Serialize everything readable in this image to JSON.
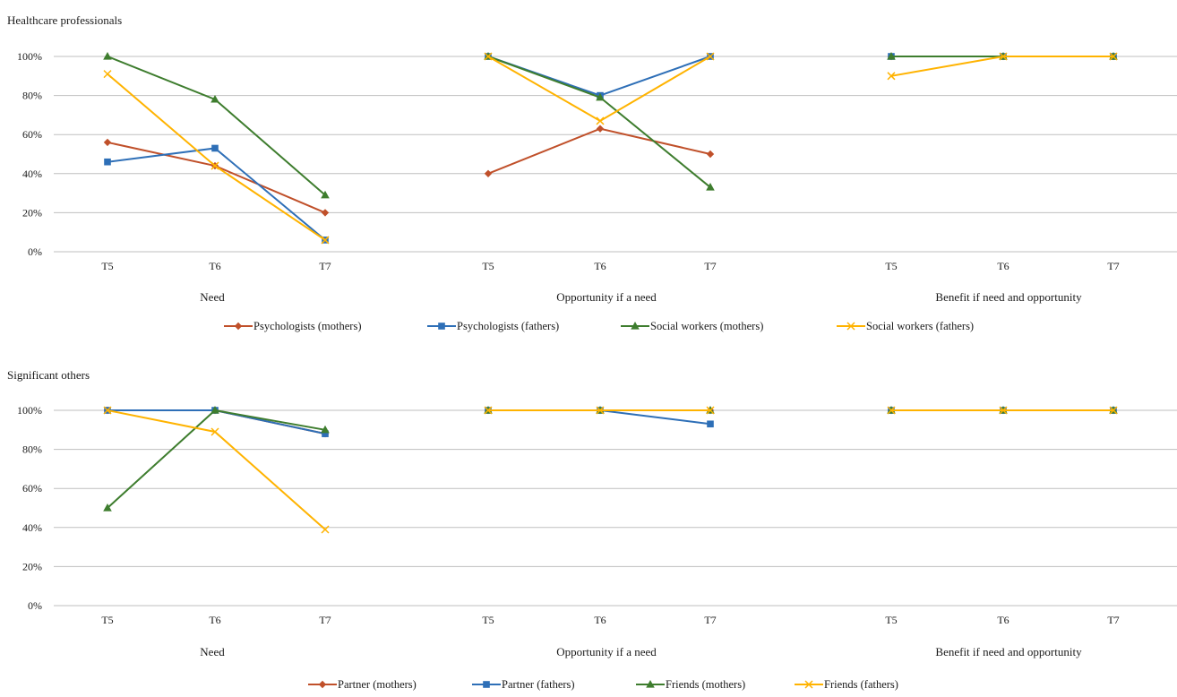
{
  "chart_data": [
    {
      "type": "line",
      "title": "Healthcare professionals",
      "ylim": [
        0,
        100
      ],
      "y_ticks": [
        "0%",
        "20%",
        "40%",
        "60%",
        "80%",
        "100%"
      ],
      "grid": true,
      "legend_position": "bottom",
      "groups": [
        {
          "label": "Need",
          "categories": [
            "T5",
            "T6",
            "T7"
          ]
        },
        {
          "label": "Opportunity if a need",
          "categories": [
            "T5",
            "T6",
            "T7"
          ]
        },
        {
          "label": "Benefit if need and opportunity",
          "categories": [
            "T5",
            "T6",
            "T7"
          ]
        }
      ],
      "series": [
        {
          "name": "Psychologists (mothers)",
          "color": "#c0502a",
          "marker": "diamond",
          "values": [
            [
              56,
              44,
              20
            ],
            [
              40,
              63,
              50
            ],
            [
              100,
              100,
              100
            ]
          ]
        },
        {
          "name": "Psychologists (fathers)",
          "color": "#2e6fb7",
          "marker": "square",
          "values": [
            [
              46,
              53,
              6
            ],
            [
              100,
              80,
              100
            ],
            [
              100,
              100,
              100
            ]
          ]
        },
        {
          "name": "Social workers (mothers)",
          "color": "#3e7d2e",
          "marker": "triangle",
          "values": [
            [
              100,
              78,
              29
            ],
            [
              100,
              79,
              33
            ],
            [
              100,
              100,
              100
            ]
          ]
        },
        {
          "name": "Social workers (fathers)",
          "color": "#ffb300",
          "marker": "x",
          "values": [
            [
              91,
              44,
              6
            ],
            [
              100,
              67,
              100
            ],
            [
              90,
              100,
              100
            ]
          ]
        }
      ]
    },
    {
      "type": "line",
      "title": "Significant others",
      "ylim": [
        0,
        100
      ],
      "y_ticks": [
        "0%",
        "20%",
        "40%",
        "60%",
        "80%",
        "100%"
      ],
      "grid": true,
      "legend_position": "bottom",
      "groups": [
        {
          "label": "Need",
          "categories": [
            "T5",
            "T6",
            "T7"
          ]
        },
        {
          "label": "Opportunity if a need",
          "categories": [
            "T5",
            "T6",
            "T7"
          ]
        },
        {
          "label": "Benefit if need and opportunity",
          "categories": [
            "T5",
            "T6",
            "T7"
          ]
        }
      ],
      "series": [
        {
          "name": "Partner (mothers)",
          "color": "#c0502a",
          "marker": "diamond",
          "values": [
            [
              100,
              100,
              88
            ],
            [
              100,
              100,
              100
            ],
            [
              100,
              100,
              100
            ]
          ]
        },
        {
          "name": "Partner (fathers)",
          "color": "#2e6fb7",
          "marker": "square",
          "values": [
            [
              100,
              100,
              88
            ],
            [
              100,
              100,
              93
            ],
            [
              100,
              100,
              100
            ]
          ]
        },
        {
          "name": "Friends (mothers)",
          "color": "#3e7d2e",
          "marker": "triangle",
          "values": [
            [
              50,
              100,
              90
            ],
            [
              100,
              100,
              100
            ],
            [
              100,
              100,
              100
            ]
          ]
        },
        {
          "name": "Friends (fathers)",
          "color": "#ffb300",
          "marker": "x",
          "values": [
            [
              100,
              89,
              39
            ],
            [
              100,
              100,
              100
            ],
            [
              100,
              100,
              100
            ]
          ]
        }
      ]
    }
  ]
}
